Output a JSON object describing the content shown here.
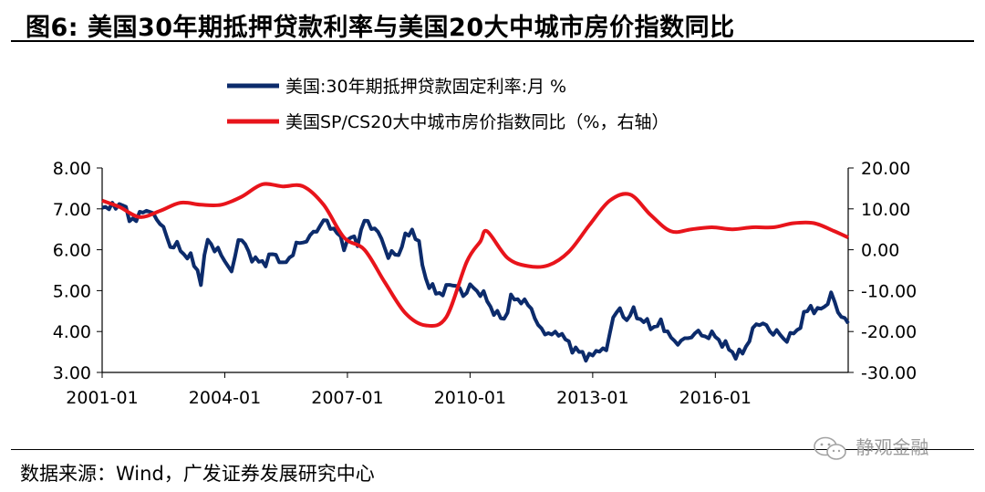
{
  "title": "图6:  美国30年期抵押贷款利率与美国20大中城市房价指数同比",
  "source": "数据来源：Wind，广发证券发展研究中心",
  "watermark": "静观金融",
  "watermark_icon": "wechat-icon",
  "colors": {
    "series1": "#0c2b6b",
    "series2": "#e8141b"
  },
  "chart_data": {
    "type": "line",
    "xlabel": "",
    "ylabel": "",
    "grid": false,
    "legend_position": "top-center",
    "x_range": [
      "2001-01",
      "2019-04"
    ],
    "x_ticks": [
      "2001-01",
      "2004-01",
      "2007-01",
      "2010-01",
      "2013-01",
      "2016-01"
    ],
    "y_left": {
      "range": [
        3,
        8
      ],
      "ticks": [
        "3.00",
        "4.00",
        "5.00",
        "6.00",
        "7.00",
        "8.00"
      ]
    },
    "y_right": {
      "range": [
        -30,
        20
      ],
      "ticks": [
        "-30.00",
        "-20.00",
        "-10.00",
        "0.00",
        "10.00",
        "20.00"
      ]
    },
    "series": [
      {
        "name": "美国:30年期抵押贷款固定利率:月 %",
        "axis": "left",
        "points": [
          [
            "2001-01",
            7.1
          ],
          [
            "2001-03",
            7.0
          ],
          [
            "2001-05",
            7.1
          ],
          [
            "2001-07",
            7.1
          ],
          [
            "2001-09",
            6.8
          ],
          [
            "2001-11",
            6.7
          ],
          [
            "2002-01",
            7.0
          ],
          [
            "2002-03",
            6.9
          ],
          [
            "2002-05",
            6.8
          ],
          [
            "2002-07",
            6.5
          ],
          [
            "2002-09",
            6.1
          ],
          [
            "2002-11",
            6.1
          ],
          [
            "2003-01",
            5.9
          ],
          [
            "2003-03",
            5.8
          ],
          [
            "2003-05",
            5.5
          ],
          [
            "2003-06",
            5.2
          ],
          [
            "2003-08",
            6.3
          ],
          [
            "2003-10",
            6.0
          ],
          [
            "2003-12",
            5.9
          ],
          [
            "2004-02",
            5.6
          ],
          [
            "2004-03",
            5.4
          ],
          [
            "2004-05",
            6.3
          ],
          [
            "2004-07",
            6.1
          ],
          [
            "2004-09",
            5.8
          ],
          [
            "2004-11",
            5.7
          ],
          [
            "2005-01",
            5.7
          ],
          [
            "2005-03",
            5.9
          ],
          [
            "2005-05",
            5.8
          ],
          [
            "2005-06",
            5.6
          ],
          [
            "2005-08",
            5.8
          ],
          [
            "2005-10",
            6.1
          ],
          [
            "2005-12",
            6.2
          ],
          [
            "2006-02",
            6.3
          ],
          [
            "2006-04",
            6.5
          ],
          [
            "2006-06",
            6.7
          ],
          [
            "2006-08",
            6.6
          ],
          [
            "2006-10",
            6.4
          ],
          [
            "2006-12",
            6.1
          ],
          [
            "2007-02",
            6.3
          ],
          [
            "2007-04",
            6.2
          ],
          [
            "2007-06",
            6.7
          ],
          [
            "2007-08",
            6.6
          ],
          [
            "2007-10",
            6.4
          ],
          [
            "2007-12",
            6.1
          ],
          [
            "2008-01",
            5.8
          ],
          [
            "2008-02",
            5.9
          ],
          [
            "2008-04",
            5.9
          ],
          [
            "2008-06",
            6.3
          ],
          [
            "2008-08",
            6.5
          ],
          [
            "2008-10",
            6.1
          ],
          [
            "2008-12",
            5.3
          ],
          [
            "2009-01",
            5.1
          ],
          [
            "2009-03",
            5.0
          ],
          [
            "2009-05",
            4.9
          ],
          [
            "2009-07",
            5.2
          ],
          [
            "2009-09",
            5.1
          ],
          [
            "2009-11",
            4.9
          ],
          [
            "2010-01",
            5.1
          ],
          [
            "2010-03",
            5.0
          ],
          [
            "2010-05",
            4.9
          ],
          [
            "2010-07",
            4.6
          ],
          [
            "2010-09",
            4.4
          ],
          [
            "2010-11",
            4.3
          ],
          [
            "2011-01",
            4.8
          ],
          [
            "2011-03",
            4.8
          ],
          [
            "2011-05",
            4.7
          ],
          [
            "2011-07",
            4.6
          ],
          [
            "2011-09",
            4.1
          ],
          [
            "2011-11",
            4.0
          ],
          [
            "2012-01",
            3.9
          ],
          [
            "2012-03",
            4.0
          ],
          [
            "2012-05",
            3.8
          ],
          [
            "2012-07",
            3.6
          ],
          [
            "2012-09",
            3.5
          ],
          [
            "2012-11",
            3.4
          ],
          [
            "2013-01",
            3.4
          ],
          [
            "2013-03",
            3.6
          ],
          [
            "2013-05",
            3.5
          ],
          [
            "2013-07",
            4.4
          ],
          [
            "2013-09",
            4.5
          ],
          [
            "2013-11",
            4.3
          ],
          [
            "2014-01",
            4.5
          ],
          [
            "2014-03",
            4.3
          ],
          [
            "2014-05",
            4.2
          ],
          [
            "2014-07",
            4.1
          ],
          [
            "2014-09",
            4.2
          ],
          [
            "2014-11",
            4.0
          ],
          [
            "2015-01",
            3.7
          ],
          [
            "2015-03",
            3.8
          ],
          [
            "2015-05",
            3.8
          ],
          [
            "2015-07",
            4.0
          ],
          [
            "2015-09",
            3.9
          ],
          [
            "2015-11",
            3.9
          ],
          [
            "2016-01",
            3.9
          ],
          [
            "2016-03",
            3.7
          ],
          [
            "2016-05",
            3.6
          ],
          [
            "2016-07",
            3.4
          ],
          [
            "2016-09",
            3.5
          ],
          [
            "2016-11",
            3.8
          ],
          [
            "2017-01",
            4.2
          ],
          [
            "2017-03",
            4.2
          ],
          [
            "2017-05",
            4.0
          ],
          [
            "2017-07",
            4.0
          ],
          [
            "2017-09",
            3.8
          ],
          [
            "2017-11",
            3.9
          ],
          [
            "2018-01",
            4.0
          ],
          [
            "2018-03",
            4.4
          ],
          [
            "2018-05",
            4.6
          ],
          [
            "2018-07",
            4.5
          ],
          [
            "2018-09",
            4.6
          ],
          [
            "2018-11",
            4.9
          ],
          [
            "2019-01",
            4.5
          ],
          [
            "2019-03",
            4.3
          ],
          [
            "2019-04",
            4.2
          ]
        ]
      },
      {
        "name": "美国SP/CS20大中城市房价指数同比（%，右轴）",
        "axis": "right",
        "points": [
          [
            "2001-01",
            12.0
          ],
          [
            "2001-06",
            10.5
          ],
          [
            "2001-12",
            8.0
          ],
          [
            "2002-06",
            9.5
          ],
          [
            "2002-12",
            11.5
          ],
          [
            "2003-06",
            11.0
          ],
          [
            "2003-12",
            11.0
          ],
          [
            "2004-06",
            13.0
          ],
          [
            "2004-12",
            16.0
          ],
          [
            "2005-06",
            15.5
          ],
          [
            "2005-12",
            15.5
          ],
          [
            "2006-06",
            11.0
          ],
          [
            "2006-12",
            3.0
          ],
          [
            "2007-06",
            0.0
          ],
          [
            "2007-12",
            -8.0
          ],
          [
            "2008-06",
            -15.5
          ],
          [
            "2008-12",
            -18.5
          ],
          [
            "2009-06",
            -16.5
          ],
          [
            "2009-12",
            -3.0
          ],
          [
            "2010-04",
            2.0
          ],
          [
            "2010-06",
            4.5
          ],
          [
            "2010-12",
            -2.0
          ],
          [
            "2011-06",
            -4.0
          ],
          [
            "2011-12",
            -3.8
          ],
          [
            "2012-06",
            -0.5
          ],
          [
            "2012-12",
            6.0
          ],
          [
            "2013-06",
            12.0
          ],
          [
            "2013-12",
            13.5
          ],
          [
            "2014-06",
            8.5
          ],
          [
            "2014-12",
            4.5
          ],
          [
            "2015-06",
            5.0
          ],
          [
            "2015-12",
            5.5
          ],
          [
            "2016-06",
            5.0
          ],
          [
            "2016-12",
            5.5
          ],
          [
            "2017-06",
            5.5
          ],
          [
            "2017-12",
            6.5
          ],
          [
            "2018-06",
            6.5
          ],
          [
            "2018-12",
            4.5
          ],
          [
            "2019-04",
            3.0
          ]
        ]
      }
    ]
  }
}
